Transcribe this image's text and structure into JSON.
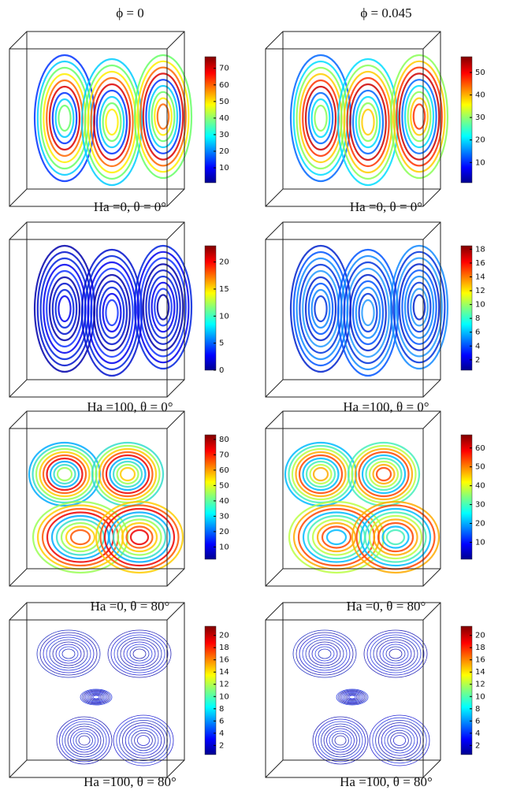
{
  "columns": [
    {
      "title": "ϕ = 0"
    },
    {
      "title": "ϕ = 0.045"
    }
  ],
  "panels": [
    {
      "caption": "Ha =0, θ = 0°",
      "colorbar": {
        "lim": [
          1,
          77
        ],
        "ticks": [
          10,
          20,
          30,
          40,
          50,
          60,
          70
        ]
      }
    },
    {
      "caption": "Ha =0, θ = 0°",
      "colorbar": {
        "lim": [
          1,
          57
        ],
        "ticks": [
          10,
          20,
          30,
          40,
          50
        ]
      }
    },
    {
      "caption": "Ha =100, θ = 0°",
      "colorbar": {
        "lim": [
          0,
          23
        ],
        "ticks": [
          0,
          5,
          10,
          15,
          20
        ]
      }
    },
    {
      "caption": "Ha =100, θ = 0°",
      "colorbar": {
        "lim": [
          0.5,
          18.5
        ],
        "ticks": [
          2,
          4,
          6,
          8,
          10,
          12,
          14,
          16,
          18
        ]
      }
    },
    {
      "caption": "Ha =0, θ = 80°",
      "colorbar": {
        "lim": [
          2,
          83
        ],
        "ticks": [
          10,
          20,
          30,
          40,
          50,
          60,
          70,
          80
        ]
      }
    },
    {
      "caption": "Ha =0, θ = 80°",
      "colorbar": {
        "lim": [
          1,
          67
        ],
        "ticks": [
          10,
          20,
          30,
          40,
          50,
          60
        ]
      }
    },
    {
      "caption": "Ha =100, θ = 80°",
      "colorbar": {
        "lim": [
          0.5,
          21.5
        ],
        "ticks": [
          2,
          4,
          6,
          8,
          10,
          12,
          14,
          16,
          18,
          20
        ]
      }
    },
    {
      "caption": "Ha =100, θ = 80°",
      "colorbar": {
        "lim": [
          0.5,
          21.5
        ],
        "ticks": [
          2,
          4,
          6,
          8,
          10,
          12,
          14,
          16,
          18,
          20
        ]
      }
    }
  ]
}
